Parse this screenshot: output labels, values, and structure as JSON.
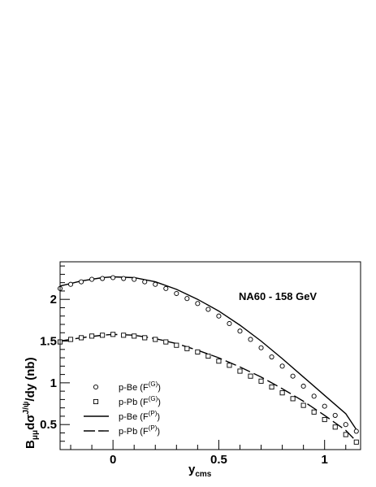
{
  "chart_data": {
    "type": "scatter",
    "annotation": "NA60 - 158 GeV",
    "xlabel": "y",
    "xlabel_sub": "cms",
    "ylabel_parts": {
      "b": "B",
      "mumu": "μμ",
      "d": "dσ",
      "jpsi": "J/ψ",
      "rest": "/dy (nb)"
    },
    "xlim": [
      -0.25,
      1.17
    ],
    "ylim": [
      0.2,
      2.45
    ],
    "x_ticks": [
      {
        "v": 0,
        "label": "0"
      },
      {
        "v": 0.5,
        "label": "0.5"
      },
      {
        "v": 1,
        "label": "1"
      }
    ],
    "y_ticks": [
      {
        "v": 0.5,
        "label": "0.5"
      },
      {
        "v": 1,
        "label": "1"
      },
      {
        "v": 1.5,
        "label": "1.5"
      },
      {
        "v": 2,
        "label": "2"
      }
    ],
    "legend_position": "bottom-left",
    "legend": [
      {
        "marker": "circle",
        "text": "p-Be (F",
        "sup": "(G)"
      },
      {
        "marker": "square",
        "text": "p-Pb (F",
        "sup": "(G)"
      },
      {
        "marker": "solid",
        "text": "p-Be (F",
        "sup": "(P)"
      },
      {
        "marker": "dashed",
        "text": "p-Pb (F",
        "sup": "(P)"
      }
    ],
    "series": [
      {
        "marker": "circle",
        "x": [
          -0.25,
          -0.2,
          -0.15,
          -0.1,
          -0.05,
          0,
          0.05,
          0.1,
          0.15,
          0.2,
          0.25,
          0.3,
          0.35,
          0.4,
          0.45,
          0.5,
          0.55,
          0.6,
          0.65,
          0.7,
          0.75,
          0.8,
          0.85,
          0.9,
          0.95,
          1.0,
          1.05,
          1.1,
          1.15
        ],
        "y": [
          2.13,
          2.18,
          2.21,
          2.24,
          2.25,
          2.26,
          2.25,
          2.24,
          2.21,
          2.18,
          2.13,
          2.07,
          2.01,
          1.95,
          1.88,
          1.8,
          1.71,
          1.62,
          1.52,
          1.42,
          1.31,
          1.2,
          1.08,
          0.96,
          0.84,
          0.72,
          0.61,
          0.5,
          0.42
        ]
      },
      {
        "marker": "square",
        "x": [
          -0.25,
          -0.2,
          -0.15,
          -0.1,
          -0.05,
          0,
          0.05,
          0.1,
          0.15,
          0.2,
          0.25,
          0.3,
          0.35,
          0.4,
          0.45,
          0.5,
          0.55,
          0.6,
          0.65,
          0.7,
          0.75,
          0.8,
          0.85,
          0.9,
          0.95,
          1.0,
          1.05,
          1.1,
          1.15
        ],
        "y": [
          1.49,
          1.52,
          1.54,
          1.56,
          1.57,
          1.58,
          1.57,
          1.56,
          1.54,
          1.52,
          1.49,
          1.45,
          1.41,
          1.37,
          1.32,
          1.26,
          1.21,
          1.14,
          1.08,
          1.02,
          0.95,
          0.88,
          0.81,
          0.73,
          0.65,
          0.56,
          0.47,
          0.38,
          0.29
        ]
      },
      {
        "marker": "solid",
        "x": [
          -0.25,
          -0.15,
          -0.05,
          0,
          0.1,
          0.2,
          0.3,
          0.4,
          0.5,
          0.6,
          0.7,
          0.8,
          0.9,
          1.0,
          1.1,
          1.15
        ],
        "y": [
          2.16,
          2.22,
          2.26,
          2.27,
          2.26,
          2.21,
          2.12,
          2.0,
          1.86,
          1.69,
          1.5,
          1.29,
          1.07,
          0.85,
          0.63,
          0.44
        ]
      },
      {
        "marker": "dashed",
        "x": [
          -0.25,
          -0.15,
          -0.05,
          0,
          0.1,
          0.2,
          0.3,
          0.4,
          0.5,
          0.6,
          0.7,
          0.8,
          0.9,
          1.0,
          1.1,
          1.15
        ],
        "y": [
          1.5,
          1.54,
          1.57,
          1.58,
          1.57,
          1.53,
          1.47,
          1.39,
          1.3,
          1.19,
          1.07,
          0.93,
          0.78,
          0.61,
          0.43,
          0.3
        ]
      }
    ]
  }
}
